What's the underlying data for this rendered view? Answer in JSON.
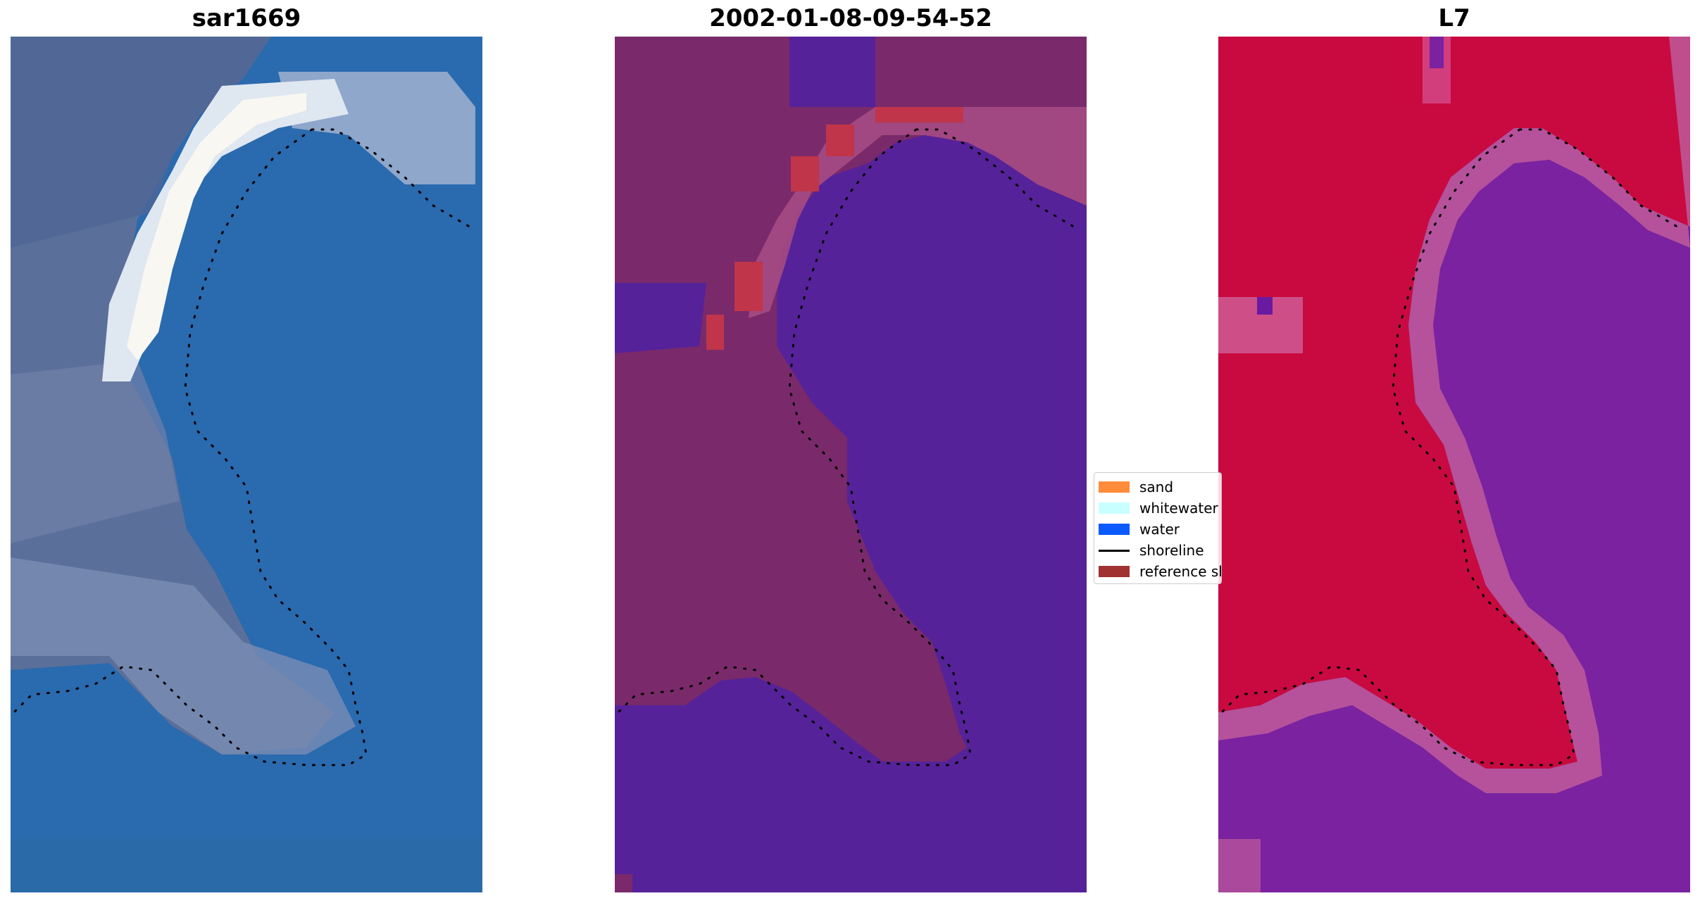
{
  "panels": {
    "rgb_title": "sar1669",
    "class_title": "2002-01-08-09-54-52",
    "mndwi_title": "L7"
  },
  "legend": {
    "items": [
      {
        "label": "sand",
        "color": "#ff8c3a",
        "kind": "patch"
      },
      {
        "label": "whitewater",
        "color": "#c8ffff",
        "kind": "patch"
      },
      {
        "label": "water",
        "color": "#0a5aff",
        "kind": "patch"
      },
      {
        "label": "shoreline",
        "color": "#000000",
        "kind": "line"
      },
      {
        "label": "reference shoreline",
        "color": "#a03232",
        "kind": "patch"
      }
    ]
  },
  "colors": {
    "rgb_ocean": "#2a6aae",
    "rgb_land": "#5a6f9a",
    "rgb_whitewater": "#eef2f6",
    "class_land": "#7a2a6a",
    "class_water": "#56229a",
    "class_reference": "#c0354a",
    "index_land": "#c80a40",
    "index_water": "#7a22a0",
    "shoreline_dots": "#000000"
  }
}
